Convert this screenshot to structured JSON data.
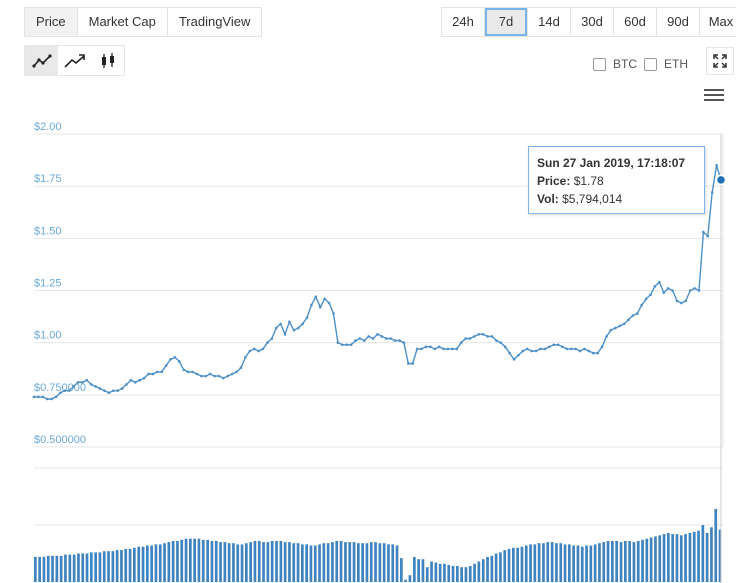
{
  "view_tabs": [
    {
      "label": "Price",
      "active": true
    },
    {
      "label": "Market Cap",
      "active": false
    },
    {
      "label": "TradingView",
      "active": false
    }
  ],
  "range_tabs": [
    {
      "label": "24h"
    },
    {
      "label": "7d",
      "selected": true
    },
    {
      "label": "14d"
    },
    {
      "label": "30d"
    },
    {
      "label": "60d"
    },
    {
      "label": "90d"
    },
    {
      "label": "Max"
    }
  ],
  "chart_types": [
    {
      "icon": "line-chart-icon",
      "active": true
    },
    {
      "icon": "trend-arrow-icon",
      "active": false
    },
    {
      "icon": "candlestick-icon",
      "active": false
    }
  ],
  "compare": {
    "btc_label": "BTC",
    "eth_label": "ETH"
  },
  "tooltip": {
    "date": "Sun 27 Jan 2019, 17:18:07",
    "price_label": "Price:",
    "price_value": "$1.78",
    "vol_label": "Vol:",
    "vol_value": "$5,794,014"
  },
  "colors": {
    "line": "#4d8fc7",
    "volume": "#3f84c1",
    "axis_label": "#6aa8d8",
    "grid": "#e6e6e6",
    "marker": "#1f6fb2"
  },
  "chart_data": {
    "type": "line",
    "y_tick_labels": [
      "$2.00",
      "$1.75",
      "$1.50",
      "$1.25",
      "$1.00",
      "$0.750000",
      "$0.500000"
    ],
    "ylim": [
      0.5,
      2.0
    ],
    "grid": true,
    "price": [
      0.74,
      0.74,
      0.74,
      0.73,
      0.73,
      0.74,
      0.76,
      0.77,
      0.77,
      0.79,
      0.81,
      0.81,
      0.82,
      0.8,
      0.79,
      0.78,
      0.77,
      0.76,
      0.77,
      0.77,
      0.78,
      0.8,
      0.82,
      0.81,
      0.82,
      0.83,
      0.85,
      0.85,
      0.86,
      0.86,
      0.89,
      0.92,
      0.93,
      0.91,
      0.87,
      0.86,
      0.86,
      0.85,
      0.84,
      0.84,
      0.85,
      0.84,
      0.84,
      0.83,
      0.84,
      0.85,
      0.86,
      0.88,
      0.93,
      0.96,
      0.97,
      0.96,
      0.97,
      1.0,
      1.02,
      1.07,
      1.09,
      1.04,
      1.1,
      1.06,
      1.07,
      1.09,
      1.12,
      1.18,
      1.22,
      1.17,
      1.21,
      1.19,
      1.14,
      1.0,
      0.99,
      0.99,
      0.99,
      1.01,
      1.02,
      1.01,
      1.03,
      1.02,
      1.04,
      1.03,
      1.02,
      1.02,
      1.01,
      1.01,
      1.0,
      0.9,
      0.9,
      0.97,
      0.97,
      0.98,
      0.98,
      0.97,
      0.98,
      0.97,
      0.97,
      0.97,
      0.97,
      1.0,
      1.02,
      1.02,
      1.03,
      1.04,
      1.04,
      1.03,
      1.03,
      1.01,
      1.0,
      0.98,
      0.95,
      0.92,
      0.94,
      0.96,
      0.97,
      0.96,
      0.96,
      0.97,
      0.97,
      0.98,
      0.99,
      0.99,
      0.98,
      0.97,
      0.97,
      0.97,
      0.96,
      0.97,
      0.96,
      0.95,
      0.95,
      0.98,
      1.03,
      1.06,
      1.07,
      1.08,
      1.09,
      1.11,
      1.13,
      1.14,
      1.18,
      1.21,
      1.23,
      1.27,
      1.29,
      1.24,
      1.26,
      1.25,
      1.2,
      1.19,
      1.2,
      1.25,
      1.26,
      1.25,
      1.53,
      1.51,
      1.72,
      1.85,
      1.78
    ],
    "volume": [
      0.22,
      0.22,
      0.22,
      0.23,
      0.23,
      0.23,
      0.23,
      0.24,
      0.24,
      0.24,
      0.25,
      0.25,
      0.25,
      0.26,
      0.26,
      0.26,
      0.27,
      0.27,
      0.27,
      0.28,
      0.28,
      0.29,
      0.29,
      0.3,
      0.31,
      0.31,
      0.32,
      0.32,
      0.33,
      0.33,
      0.34,
      0.35,
      0.36,
      0.36,
      0.37,
      0.38,
      0.38,
      0.38,
      0.38,
      0.37,
      0.37,
      0.36,
      0.36,
      0.35,
      0.35,
      0.34,
      0.34,
      0.33,
      0.33,
      0.34,
      0.35,
      0.36,
      0.36,
      0.35,
      0.35,
      0.36,
      0.36,
      0.36,
      0.35,
      0.35,
      0.34,
      0.34,
      0.33,
      0.33,
      0.32,
      0.32,
      0.33,
      0.34,
      0.34,
      0.35,
      0.36,
      0.36,
      0.35,
      0.35,
      0.35,
      0.34,
      0.34,
      0.34,
      0.35,
      0.35,
      0.34,
      0.34,
      0.33,
      0.33,
      0.32,
      0.21,
      0.02,
      0.06,
      0.22,
      0.2,
      0.2,
      0.13,
      0.18,
      0.17,
      0.16,
      0.16,
      0.15,
      0.14,
      0.14,
      0.13,
      0.13,
      0.14,
      0.16,
      0.18,
      0.2,
      0.22,
      0.23,
      0.25,
      0.26,
      0.28,
      0.29,
      0.3,
      0.3,
      0.31,
      0.32,
      0.33,
      0.33,
      0.34,
      0.34,
      0.35,
      0.35,
      0.34,
      0.34,
      0.33,
      0.33,
      0.32,
      0.32,
      0.31,
      0.32,
      0.32,
      0.33,
      0.34,
      0.35,
      0.36,
      0.36,
      0.36,
      0.35,
      0.36,
      0.36,
      0.35,
      0.36,
      0.37,
      0.38,
      0.39,
      0.4,
      0.41,
      0.42,
      0.43,
      0.42,
      0.42,
      0.41,
      0.42,
      0.43,
      0.44,
      0.45,
      0.5,
      0.43,
      0.48,
      0.64,
      0.46
    ]
  }
}
